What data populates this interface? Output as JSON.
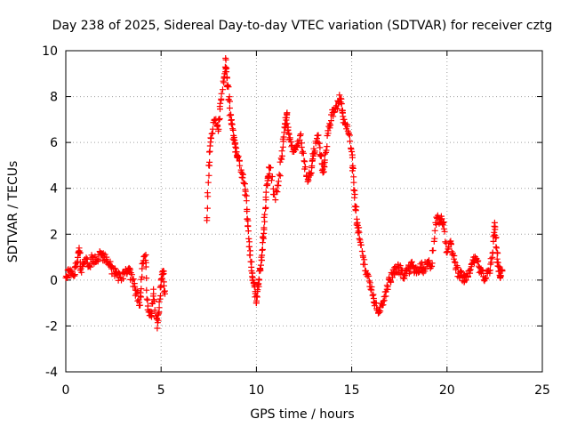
{
  "chart_data": {
    "type": "scatter",
    "title": "Day 238 of 2025, Sidereal Day-to-day VTEC variation (SDTVAR) for receiver cztg",
    "xlabel": "GPS time / hours",
    "ylabel": "SDTVAR / TECUs",
    "xlim": [
      0,
      25
    ],
    "ylim": [
      -4,
      10
    ],
    "xticks": [
      0,
      5,
      10,
      15,
      20,
      25
    ],
    "yticks": [
      -4,
      -2,
      0,
      2,
      4,
      6,
      8,
      10
    ],
    "xtick_labels": [
      "0",
      "5",
      "10",
      "15",
      "20",
      "25"
    ],
    "ytick_labels": [
      "-4",
      "-2",
      "0",
      "2",
      "4",
      "6",
      "8",
      "10"
    ],
    "grid": true,
    "marker": "+",
    "color": "#ff0000",
    "series": [
      {
        "name": "SDTVAR",
        "trace": [
          [
            0.0,
            0.1
          ],
          [
            0.2,
            0.4
          ],
          [
            0.4,
            0.2
          ],
          [
            0.6,
            0.8
          ],
          [
            0.7,
            1.4
          ],
          [
            0.8,
            0.5
          ],
          [
            1.0,
            0.9
          ],
          [
            1.2,
            0.6
          ],
          [
            1.4,
            1.0
          ],
          [
            1.6,
            0.8
          ],
          [
            1.8,
            1.2
          ],
          [
            2.0,
            1.0
          ],
          [
            2.2,
            0.8
          ],
          [
            2.4,
            0.5
          ],
          [
            2.6,
            0.3
          ],
          [
            2.8,
            0.1
          ],
          [
            3.1,
            0.3
          ],
          [
            3.3,
            0.5
          ],
          [
            3.5,
            0.0
          ],
          [
            3.7,
            -0.6
          ],
          [
            3.9,
            -1.1
          ],
          [
            4.0,
            0.5
          ],
          [
            4.2,
            1.1
          ],
          [
            4.3,
            -1.3
          ],
          [
            4.5,
            -1.6
          ],
          [
            4.6,
            -0.4
          ],
          [
            4.8,
            -2.1
          ],
          [
            4.9,
            -1.2
          ],
          [
            5.0,
            0.0
          ],
          [
            5.1,
            0.4
          ],
          [
            5.2,
            -0.6
          ],
          [
            7.4,
            2.6
          ],
          [
            7.5,
            5.0
          ],
          [
            7.6,
            6.2
          ],
          [
            7.8,
            7.0
          ],
          [
            8.0,
            6.5
          ],
          [
            8.1,
            7.7
          ],
          [
            8.3,
            8.8
          ],
          [
            8.4,
            9.6
          ],
          [
            8.5,
            8.5
          ],
          [
            8.6,
            7.5
          ],
          [
            8.7,
            6.8
          ],
          [
            8.8,
            6.3
          ],
          [
            8.9,
            5.8
          ],
          [
            9.0,
            5.4
          ],
          [
            9.2,
            4.8
          ],
          [
            9.4,
            4.2
          ],
          [
            9.5,
            3.0
          ],
          [
            9.6,
            1.8
          ],
          [
            9.7,
            0.8
          ],
          [
            9.8,
            0.0
          ],
          [
            9.9,
            -0.3
          ],
          [
            10.0,
            -1.0
          ],
          [
            10.1,
            -0.2
          ],
          [
            10.2,
            0.5
          ],
          [
            10.3,
            1.3
          ],
          [
            10.4,
            2.2
          ],
          [
            10.5,
            3.5
          ],
          [
            10.6,
            4.5
          ],
          [
            10.7,
            4.9
          ],
          [
            11.0,
            3.5
          ],
          [
            11.2,
            4.6
          ],
          [
            11.4,
            5.8
          ],
          [
            11.5,
            6.8
          ],
          [
            11.6,
            7.2
          ],
          [
            11.7,
            6.4
          ],
          [
            11.9,
            5.6
          ],
          [
            12.1,
            5.8
          ],
          [
            12.3,
            6.3
          ],
          [
            12.5,
            5.2
          ],
          [
            12.7,
            4.4
          ],
          [
            12.9,
            4.9
          ],
          [
            13.0,
            5.5
          ],
          [
            13.2,
            6.3
          ],
          [
            13.4,
            5.4
          ],
          [
            13.5,
            4.7
          ],
          [
            13.6,
            5.5
          ],
          [
            13.8,
            6.7
          ],
          [
            14.0,
            7.3
          ],
          [
            14.2,
            7.6
          ],
          [
            14.4,
            7.9
          ],
          [
            14.5,
            7.4
          ],
          [
            14.6,
            7.0
          ],
          [
            14.8,
            6.5
          ],
          [
            15.0,
            5.6
          ],
          [
            15.1,
            4.5
          ],
          [
            15.2,
            3.2
          ],
          [
            15.3,
            2.5
          ],
          [
            15.4,
            1.8
          ],
          [
            15.6,
            1.0
          ],
          [
            15.8,
            0.3
          ],
          [
            16.0,
            -0.4
          ],
          [
            16.2,
            -1.0
          ],
          [
            16.4,
            -1.4
          ],
          [
            16.6,
            -1.1
          ],
          [
            16.8,
            -0.5
          ],
          [
            17.0,
            0.0
          ],
          [
            17.2,
            0.3
          ],
          [
            17.4,
            0.5
          ],
          [
            17.6,
            0.4
          ],
          [
            17.8,
            0.2
          ],
          [
            18.0,
            0.5
          ],
          [
            18.2,
            0.6
          ],
          [
            18.4,
            0.3
          ],
          [
            18.6,
            0.7
          ],
          [
            18.8,
            0.5
          ],
          [
            19.0,
            0.8
          ],
          [
            19.2,
            0.6
          ],
          [
            19.4,
            2.5
          ],
          [
            19.6,
            2.7
          ],
          [
            19.8,
            2.5
          ],
          [
            20.0,
            1.2
          ],
          [
            20.2,
            1.6
          ],
          [
            20.4,
            0.8
          ],
          [
            20.6,
            0.3
          ],
          [
            20.8,
            0.1
          ],
          [
            21.0,
            0.0
          ],
          [
            21.2,
            0.3
          ],
          [
            21.4,
            1.0
          ],
          [
            21.6,
            0.8
          ],
          [
            21.8,
            0.3
          ],
          [
            22.0,
            0.1
          ],
          [
            22.2,
            0.4
          ],
          [
            22.4,
            1.2
          ],
          [
            22.5,
            2.5
          ],
          [
            22.6,
            1.4
          ],
          [
            22.7,
            0.6
          ],
          [
            22.8,
            0.2
          ],
          [
            22.9,
            0.4
          ]
        ]
      }
    ]
  }
}
